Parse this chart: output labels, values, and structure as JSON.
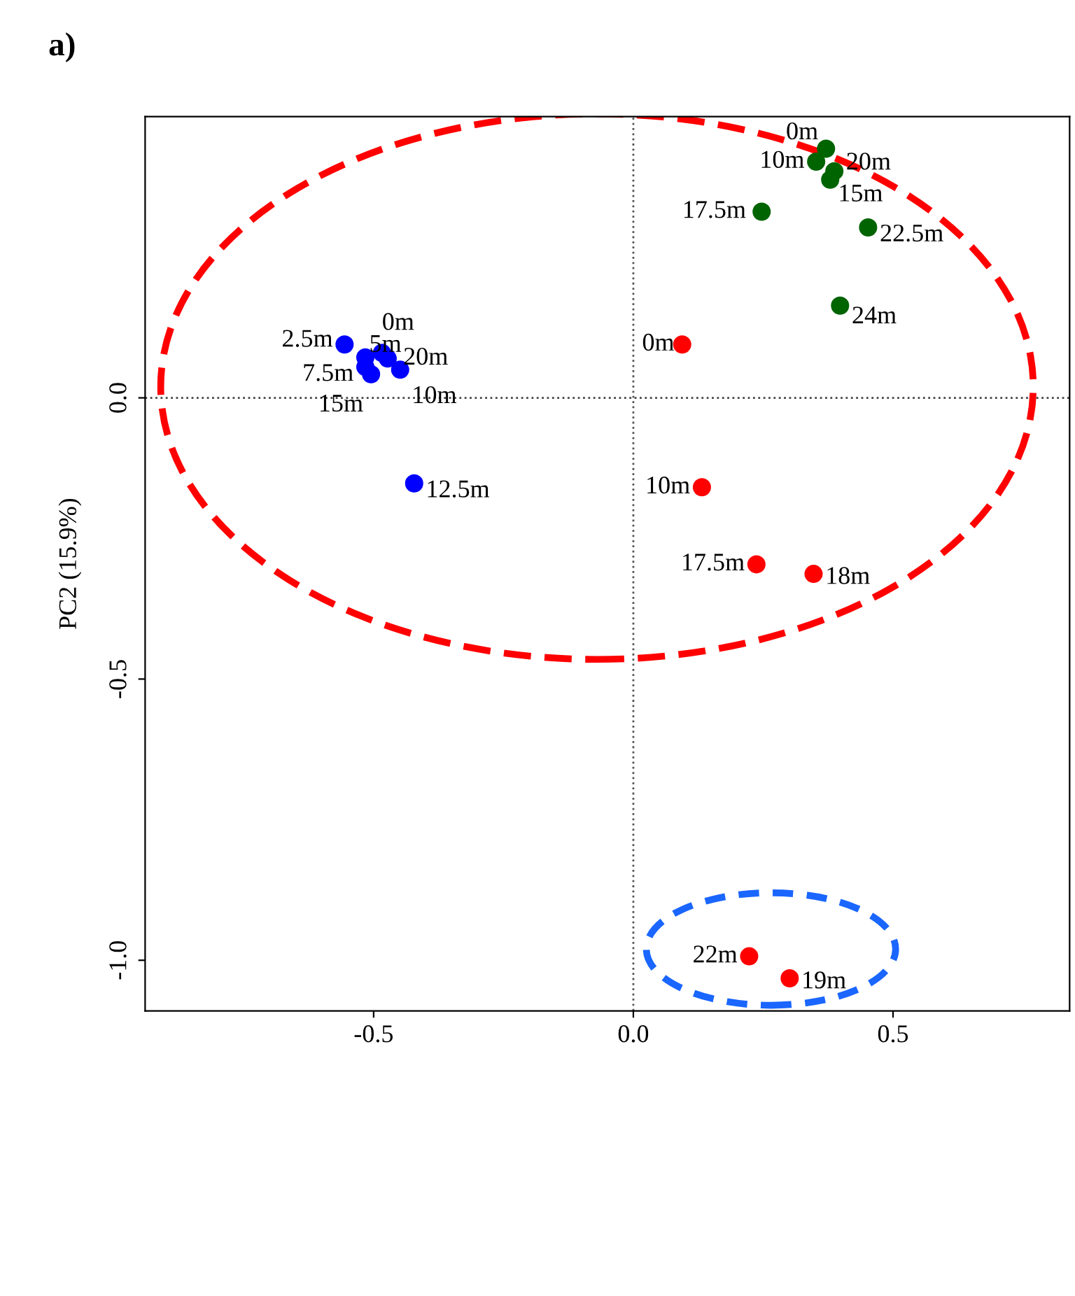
{
  "chart_data": {
    "type": "scatter",
    "title": "a)",
    "ylabel": "PC2 (15.9%)",
    "xlim": [
      -0.94,
      0.84
    ],
    "ylim": [
      -1.09,
      0.5
    ],
    "xticks": [
      -0.5,
      {
        "value": 0,
        "label": "0.0"
      },
      0.5
    ],
    "yticks": [
      {
        "value": -1,
        "label": "-1.0"
      },
      -0.5,
      {
        "value": 0,
        "label": "0.0"
      }
    ],
    "grid": false,
    "legend": false,
    "marker": "circle",
    "ref_lines": [
      {
        "axis": "x",
        "value": 0,
        "line_style": "dotted",
        "color": "#555555"
      },
      {
        "axis": "y",
        "value": 0,
        "line_style": "dotted",
        "color": "#444444"
      }
    ],
    "series": [
      {
        "color": "#0000ff",
        "x": [
          -0.484,
          -0.556,
          -0.516,
          -0.516,
          -0.449,
          -0.422,
          -0.505,
          -0.473
        ],
        "values": [
          0.08,
          0.095,
          0.072,
          0.055,
          0.05,
          -0.152,
          0.042,
          0.07
        ]
      },
      {
        "color": "#006400",
        "x": [
          0.371,
          0.352,
          0.379,
          0.247,
          0.387,
          0.452,
          0.398
        ],
        "values": [
          0.443,
          0.42,
          0.388,
          0.331,
          0.403,
          0.303,
          0.164
        ]
      },
      {
        "color": "#ff0000",
        "x": [
          0.094,
          0.132,
          0.237,
          0.347,
          0.301,
          0.223
        ],
        "values": [
          0.095,
          -0.159,
          -0.296,
          -0.313,
          -1.032,
          -0.993
        ]
      }
    ],
    "annotations": [
      {
        "text": "0m",
        "x": -0.484,
        "y": 0.08
      },
      {
        "text": "2.5m",
        "x": -0.556,
        "y": 0.095
      },
      {
        "text": "5m",
        "x": -0.516,
        "y": 0.072
      },
      {
        "text": "7.5m",
        "x": -0.516,
        "y": 0.055
      },
      {
        "text": "10m",
        "x": -0.449,
        "y": 0.05
      },
      {
        "text": "12.5m",
        "x": -0.422,
        "y": -0.152
      },
      {
        "text": "15m",
        "x": -0.505,
        "y": 0.042
      },
      {
        "text": "20m",
        "x": -0.473,
        "y": 0.07
      },
      {
        "text": "0m",
        "x": 0.371,
        "y": 0.443
      },
      {
        "text": "10m",
        "x": 0.352,
        "y": 0.42
      },
      {
        "text": "15m",
        "x": 0.379,
        "y": 0.388
      },
      {
        "text": "17.5m",
        "x": 0.247,
        "y": 0.331
      },
      {
        "text": "20m",
        "x": 0.387,
        "y": 0.403
      },
      {
        "text": "22.5m",
        "x": 0.452,
        "y": 0.303
      },
      {
        "text": "24m",
        "x": 0.398,
        "y": 0.164
      },
      {
        "text": "0m",
        "x": 0.094,
        "y": 0.095
      },
      {
        "text": "10m",
        "x": 0.132,
        "y": -0.159
      },
      {
        "text": "17.5m",
        "x": 0.237,
        "y": -0.296
      },
      {
        "text": "18m",
        "x": 0.347,
        "y": -0.313
      },
      {
        "text": "19m",
        "x": 0.301,
        "y": -1.032
      },
      {
        "text": "22m",
        "x": 0.223,
        "y": -0.993
      }
    ]
  }
}
